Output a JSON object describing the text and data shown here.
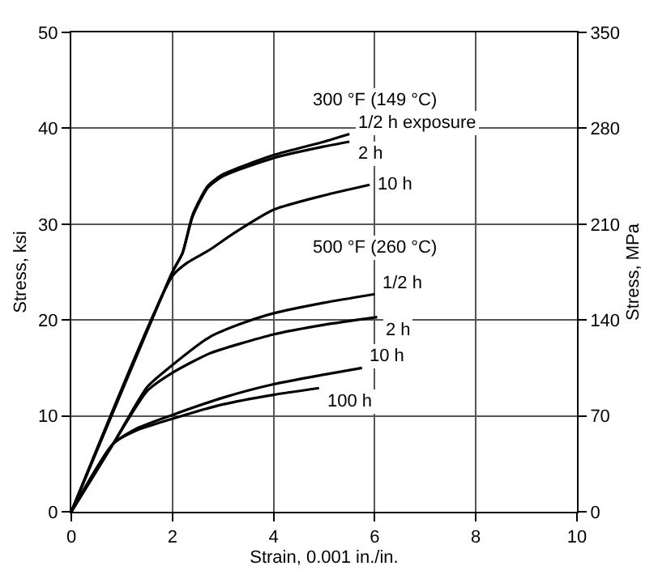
{
  "chart_data": {
    "type": "line",
    "xlabel": "Strain, 0.001 in./in.",
    "ylabel": "Stress, ksi",
    "y2label": "Stress, MPa",
    "xlim": [
      0,
      10
    ],
    "xticks": [
      0,
      2,
      4,
      6,
      8,
      10
    ],
    "ylim": [
      0,
      50
    ],
    "yticks": [
      0,
      10,
      20,
      30,
      40,
      50
    ],
    "y2lim": [
      0,
      350
    ],
    "y2ticks": [
      0,
      70,
      140,
      210,
      280,
      350
    ],
    "grid": true,
    "legend": false,
    "marker": "none",
    "line_style": "solid",
    "series": [
      {
        "name": "1/2 h exposure",
        "color": "#000000",
        "x": [
          0,
          2,
          2.2,
          2.4,
          2.7,
          3,
          4,
          5,
          5.5
        ],
        "values": [
          0,
          25,
          27,
          31,
          34,
          35.2,
          37.2,
          38.6,
          39.4
        ]
      },
      {
        "name": "2 h",
        "color": "#000000",
        "x": [
          0,
          2,
          2.2,
          2.4,
          2.7,
          3,
          4,
          5,
          5.5
        ],
        "values": [
          0,
          25,
          27,
          30.8,
          33.8,
          35,
          36.9,
          38.1,
          38.6
        ]
      },
      {
        "name": "10 h",
        "color": "#000000",
        "x": [
          0,
          2,
          2.3,
          2.73,
          3.2,
          4,
          5,
          5.9
        ],
        "values": [
          0,
          24.6,
          26,
          27.3,
          29,
          31.5,
          33,
          34.1
        ]
      },
      {
        "name": "1/2 h",
        "color": "#000000",
        "x": [
          0,
          0.83,
          1.5,
          2,
          2.73,
          3.3,
          4,
          5,
          6
        ],
        "values": [
          0,
          7.1,
          13,
          15.3,
          18.2,
          19.5,
          20.7,
          21.8,
          22.7
        ]
      },
      {
        "name": "2 h",
        "color": "#000000",
        "x": [
          0,
          0.83,
          1.5,
          2,
          2.73,
          4,
          5,
          6.05
        ],
        "values": [
          0,
          7.1,
          12.6,
          14.5,
          16.5,
          18.5,
          19.5,
          20.3
        ]
      },
      {
        "name": "10 h",
        "color": "#000000",
        "x": [
          0,
          0.83,
          1.3,
          2,
          3,
          4,
          5,
          5.75
        ],
        "values": [
          0,
          7.1,
          8.7,
          10.1,
          11.9,
          13.3,
          14.3,
          15
        ]
      },
      {
        "name": "100 h",
        "color": "#000000",
        "x": [
          0,
          0.83,
          1.3,
          2,
          3,
          4,
          4.9
        ],
        "values": [
          0,
          7.1,
          8.5,
          9.7,
          11.2,
          12.2,
          12.9
        ]
      }
    ],
    "annotations": [
      "300 °F (149 °C)",
      "500 °F (260 °C)"
    ]
  }
}
